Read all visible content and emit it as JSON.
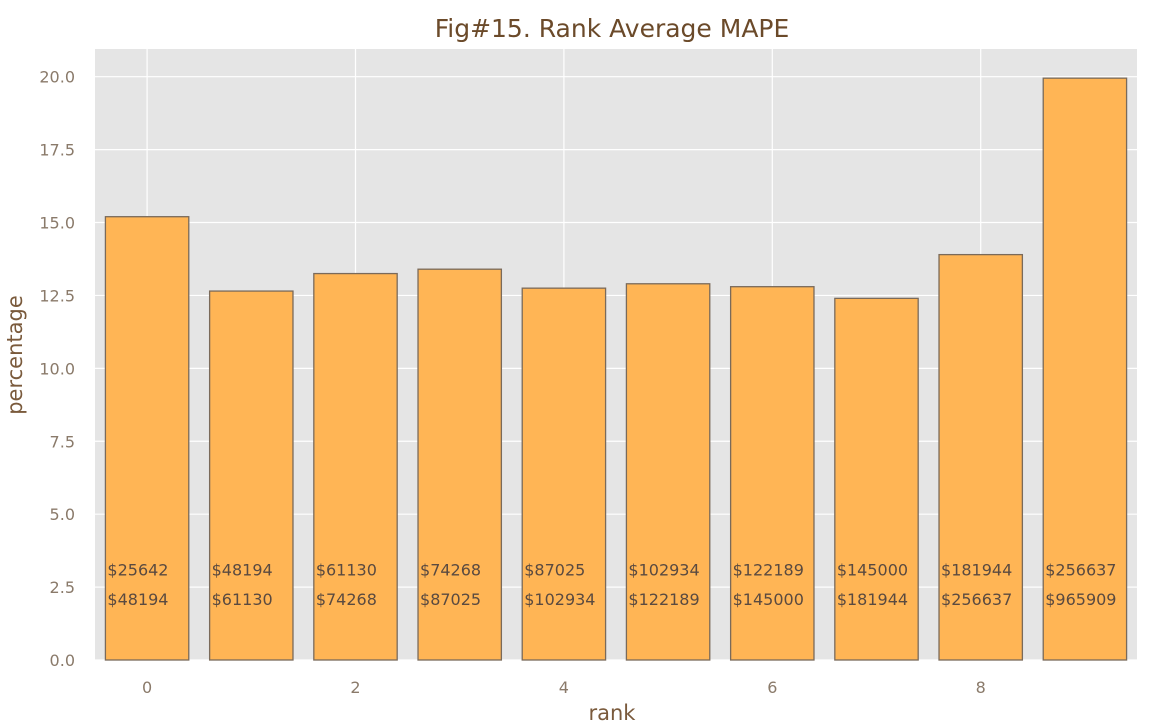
{
  "chart_data": {
    "type": "bar",
    "title": "Fig#15. Rank Average MAPE",
    "xlabel": "rank",
    "ylabel": "percentage",
    "x": [
      0,
      1,
      2,
      3,
      4,
      5,
      6,
      7,
      8,
      9
    ],
    "values": [
      15.2,
      12.65,
      13.25,
      13.4,
      12.75,
      12.9,
      12.8,
      12.4,
      13.9,
      19.95
    ],
    "xticks": [
      "0",
      "2",
      "4",
      "6",
      "8"
    ],
    "xtick_values": [
      0,
      2,
      4,
      6,
      8
    ],
    "yticks": [
      "0.0",
      "2.5",
      "5.0",
      "7.5",
      "10.0",
      "12.5",
      "15.0",
      "17.5",
      "20.0"
    ],
    "ytick_values": [
      0,
      2.5,
      5,
      7.5,
      10,
      12.5,
      15,
      17.5,
      20
    ],
    "ylim": [
      0,
      20.95
    ],
    "xlim": [
      -0.5,
      9.5
    ],
    "grid": true,
    "bar_color": "#ffb555",
    "bar_edge_color": "#7a6a5a",
    "plot_background": "#e5e5e5",
    "grid_color": "#ffffff",
    "bar_labels": [
      {
        "lower": "$25642",
        "upper": "$48194"
      },
      {
        "lower": "$48194",
        "upper": "$61130"
      },
      {
        "lower": "$61130",
        "upper": "$74268"
      },
      {
        "lower": "$74268",
        "upper": "$87025"
      },
      {
        "lower": "$87025",
        "upper": "$102934"
      },
      {
        "lower": "$102934",
        "upper": "$122189"
      },
      {
        "lower": "$122189",
        "upper": "$145000"
      },
      {
        "lower": "$145000",
        "upper": "$181944"
      },
      {
        "lower": "$181944",
        "upper": "$256637"
      },
      {
        "lower": "$256637",
        "upper": "$965909"
      }
    ],
    "bar_label_y_values": [
      3.1,
      2.1
    ]
  }
}
